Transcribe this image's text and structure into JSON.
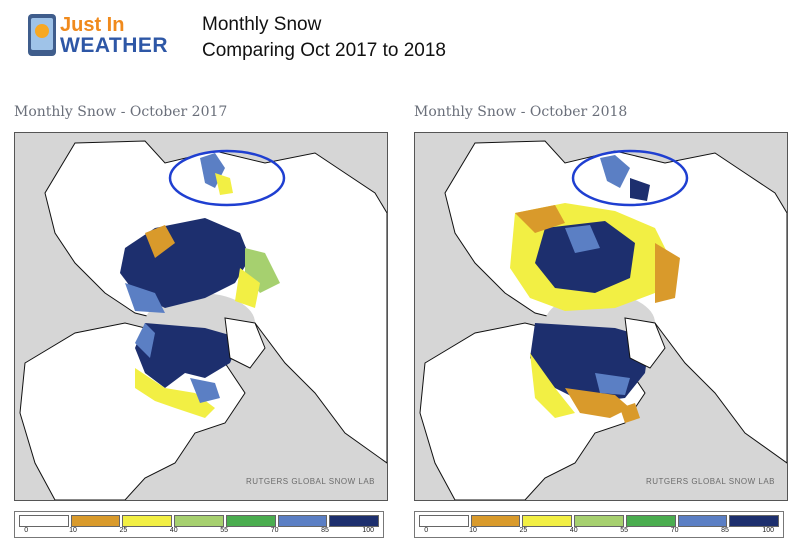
{
  "header": {
    "logo_top": "Just In",
    "logo_bottom": "WEATHER",
    "title_line1": "Monthly Snow",
    "title_line2": "Comparing Oct 2017 to 2018"
  },
  "panels": [
    {
      "title": "Monthly Snow - October 2017",
      "credit": "RUTGERS GLOBAL SNOW LAB"
    },
    {
      "title": "Monthly Snow - October 2018",
      "credit": "RUTGERS GLOBAL SNOW LAB"
    }
  ],
  "legend": {
    "ticks": [
      "0",
      "10",
      "25",
      "40",
      "55",
      "70",
      "85",
      "100"
    ],
    "colors": [
      "#ffffff",
      "#d99a2b",
      "#f2ef44",
      "#a6d06f",
      "#4aad4f",
      "#5b7fc4",
      "#1d2f6e"
    ]
  },
  "colors": {
    "ocean": "#d6d6d6",
    "land": "#ffffff",
    "circle": "#1f3fd1"
  }
}
